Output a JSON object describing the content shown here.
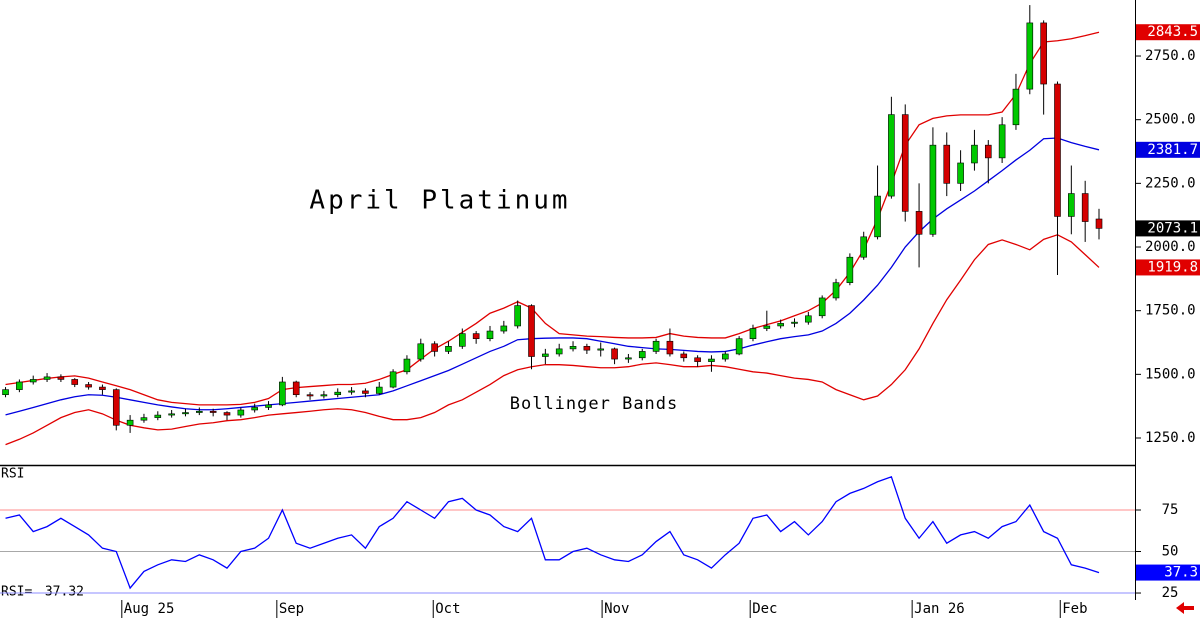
{
  "chart_data": {
    "type": "candlestick",
    "title": "April Platinum",
    "annotation": "Bollinger Bands",
    "x": [
      0,
      1,
      2,
      3,
      4,
      5,
      6,
      7,
      8,
      9,
      10,
      11,
      12,
      13,
      14,
      15,
      16,
      17,
      18,
      19,
      20,
      21,
      22,
      23,
      24,
      25,
      26,
      27,
      28,
      29,
      30,
      31,
      32,
      33,
      34,
      35,
      36,
      37,
      38,
      39,
      40,
      41,
      42,
      43,
      44,
      45,
      46,
      47,
      48,
      49,
      50,
      51,
      52,
      53,
      54,
      55,
      56,
      57,
      58,
      59,
      60,
      61,
      62,
      63,
      64,
      65,
      66,
      67,
      68,
      69,
      70,
      71,
      72,
      73,
      74,
      75,
      76,
      77,
      78,
      79
    ],
    "xlim": [
      -0.4,
      81.6
    ],
    "xticks": [
      {
        "value": 8.4,
        "label": "Aug 25"
      },
      {
        "value": 19.6,
        "label": "Sep"
      },
      {
        "value": 30.9,
        "label": "Oct"
      },
      {
        "value": 43.1,
        "label": "Nov"
      },
      {
        "value": 53.8,
        "label": "Dec"
      },
      {
        "value": 65.5,
        "label": "Jan 26"
      },
      {
        "value": 76.2,
        "label": "Feb"
      }
    ],
    "ylim": [
      1144,
      2970
    ],
    "yticks": [
      {
        "value": 1250,
        "label": "1250.0"
      },
      {
        "value": 1500,
        "label": "1500.0"
      },
      {
        "value": 1750,
        "label": "1750.0"
      },
      {
        "value": 2000,
        "label": "2000.0"
      },
      {
        "value": 2250,
        "label": "2250.0"
      },
      {
        "value": 2500,
        "label": "2500.0"
      },
      {
        "value": 2750,
        "label": "2750.0"
      }
    ],
    "up_color": "#00c800",
    "down_color": "#d40000",
    "close_box_color": "#000000",
    "ohlc": [
      [
        1420,
        1450,
        1410,
        1440
      ],
      [
        1440,
        1480,
        1430,
        1470
      ],
      [
        1470,
        1495,
        1460,
        1480
      ],
      [
        1480,
        1505,
        1470,
        1490
      ],
      [
        1490,
        1500,
        1470,
        1480
      ],
      [
        1480,
        1485,
        1450,
        1460
      ],
      [
        1460,
        1470,
        1440,
        1450
      ],
      [
        1450,
        1460,
        1420,
        1440
      ],
      [
        1440,
        1445,
        1280,
        1300
      ],
      [
        1300,
        1340,
        1270,
        1320
      ],
      [
        1320,
        1345,
        1310,
        1330
      ],
      [
        1330,
        1355,
        1320,
        1340
      ],
      [
        1340,
        1360,
        1330,
        1345
      ],
      [
        1345,
        1365,
        1335,
        1350
      ],
      [
        1350,
        1370,
        1340,
        1355
      ],
      [
        1355,
        1365,
        1335,
        1350
      ],
      [
        1350,
        1355,
        1320,
        1340
      ],
      [
        1340,
        1370,
        1330,
        1360
      ],
      [
        1360,
        1385,
        1350,
        1370
      ],
      [
        1370,
        1395,
        1360,
        1380
      ],
      [
        1380,
        1490,
        1375,
        1470
      ],
      [
        1470,
        1475,
        1410,
        1420
      ],
      [
        1420,
        1430,
        1400,
        1415
      ],
      [
        1415,
        1435,
        1405,
        1420
      ],
      [
        1420,
        1445,
        1410,
        1430
      ],
      [
        1430,
        1450,
        1420,
        1435
      ],
      [
        1435,
        1445,
        1410,
        1425
      ],
      [
        1425,
        1470,
        1420,
        1450
      ],
      [
        1450,
        1520,
        1445,
        1510
      ],
      [
        1510,
        1575,
        1500,
        1560
      ],
      [
        1560,
        1640,
        1550,
        1620
      ],
      [
        1620,
        1630,
        1570,
        1590
      ],
      [
        1590,
        1630,
        1580,
        1610
      ],
      [
        1610,
        1680,
        1600,
        1660
      ],
      [
        1660,
        1670,
        1620,
        1640
      ],
      [
        1640,
        1690,
        1630,
        1670
      ],
      [
        1670,
        1710,
        1660,
        1690
      ],
      [
        1690,
        1790,
        1680,
        1770
      ],
      [
        1770,
        1775,
        1520,
        1570
      ],
      [
        1570,
        1600,
        1540,
        1580
      ],
      [
        1580,
        1620,
        1570,
        1600
      ],
      [
        1600,
        1630,
        1590,
        1610
      ],
      [
        1610,
        1620,
        1580,
        1595
      ],
      [
        1595,
        1625,
        1570,
        1600
      ],
      [
        1600,
        1605,
        1540,
        1560
      ],
      [
        1560,
        1580,
        1545,
        1565
      ],
      [
        1565,
        1600,
        1555,
        1590
      ],
      [
        1590,
        1640,
        1580,
        1630
      ],
      [
        1630,
        1680,
        1570,
        1580
      ],
      [
        1580,
        1590,
        1550,
        1565
      ],
      [
        1565,
        1575,
        1530,
        1550
      ],
      [
        1550,
        1575,
        1510,
        1560
      ],
      [
        1560,
        1590,
        1550,
        1580
      ],
      [
        1580,
        1650,
        1575,
        1640
      ],
      [
        1640,
        1695,
        1630,
        1680
      ],
      [
        1680,
        1750,
        1670,
        1690
      ],
      [
        1690,
        1715,
        1680,
        1700
      ],
      [
        1700,
        1720,
        1685,
        1705
      ],
      [
        1705,
        1745,
        1695,
        1730
      ],
      [
        1730,
        1810,
        1720,
        1800
      ],
      [
        1800,
        1875,
        1790,
        1860
      ],
      [
        1860,
        1975,
        1850,
        1960
      ],
      [
        1960,
        2060,
        1950,
        2040
      ],
      [
        2040,
        2320,
        2030,
        2200
      ],
      [
        2200,
        2590,
        2190,
        2520
      ],
      [
        2520,
        2560,
        2100,
        2140
      ],
      [
        2140,
        2250,
        1920,
        2050
      ],
      [
        2050,
        2470,
        2040,
        2400
      ],
      [
        2400,
        2450,
        2200,
        2250
      ],
      [
        2250,
        2380,
        2220,
        2330
      ],
      [
        2330,
        2460,
        2300,
        2400
      ],
      [
        2400,
        2420,
        2250,
        2350
      ],
      [
        2350,
        2510,
        2330,
        2480
      ],
      [
        2480,
        2680,
        2460,
        2620
      ],
      [
        2620,
        2950,
        2600,
        2880
      ],
      [
        2880,
        2890,
        2520,
        2640
      ],
      [
        2640,
        2650,
        1890,
        2120
      ],
      [
        2120,
        2320,
        2050,
        2210
      ],
      [
        2210,
        2260,
        2020,
        2100
      ],
      [
        2110,
        2150,
        2030,
        2073.1
      ]
    ],
    "bands": [
      {
        "color": "#e00000",
        "values": [
          1460,
          1468,
          1476,
          1484,
          1490,
          1494,
          1485,
          1470,
          1455,
          1440,
          1420,
          1400,
          1390,
          1385,
          1380,
          1380,
          1380,
          1382,
          1390,
          1405,
          1440,
          1448,
          1452,
          1456,
          1460,
          1460,
          1465,
          1480,
          1500,
          1518,
          1560,
          1600,
          1630,
          1665,
          1700,
          1740,
          1760,
          1785,
          1760,
          1700,
          1660,
          1655,
          1650,
          1648,
          1645,
          1643,
          1643,
          1645,
          1660,
          1650,
          1645,
          1643,
          1643,
          1660,
          1680,
          1695,
          1710,
          1730,
          1750,
          1780,
          1830,
          1900,
          1990,
          2110,
          2250,
          2400,
          2480,
          2505,
          2515,
          2519,
          2519,
          2519,
          2530,
          2600,
          2720,
          2805,
          2810,
          2818,
          2830,
          2843.5
        ]
      },
      {
        "color": "#0000e0",
        "values": [
          1341,
          1355,
          1370,
          1385,
          1400,
          1412,
          1420,
          1418,
          1410,
          1400,
          1390,
          1380,
          1372,
          1365,
          1361,
          1361,
          1365,
          1370,
          1375,
          1380,
          1385,
          1390,
          1395,
          1400,
          1405,
          1410,
          1415,
          1420,
          1435,
          1455,
          1475,
          1495,
          1515,
          1540,
          1565,
          1590,
          1610,
          1636,
          1640,
          1642,
          1643,
          1643,
          1640,
          1630,
          1620,
          1610,
          1605,
          1600,
          1598,
          1594,
          1590,
          1588,
          1590,
          1600,
          1615,
          1628,
          1640,
          1648,
          1655,
          1670,
          1700,
          1740,
          1792,
          1850,
          1920,
          2000,
          2060,
          2110,
          2150,
          2185,
          2220,
          2260,
          2300,
          2342,
          2380,
          2425,
          2428,
          2410,
          2395,
          2381.7
        ]
      },
      {
        "color": "#e00000",
        "values": [
          1224,
          1245,
          1270,
          1300,
          1330,
          1350,
          1361,
          1345,
          1320,
          1300,
          1290,
          1282,
          1285,
          1295,
          1305,
          1310,
          1318,
          1322,
          1330,
          1340,
          1345,
          1350,
          1355,
          1361,
          1365,
          1361,
          1350,
          1335,
          1322,
          1322,
          1330,
          1350,
          1380,
          1400,
          1430,
          1460,
          1495,
          1518,
          1530,
          1538,
          1538,
          1535,
          1530,
          1526,
          1526,
          1530,
          1540,
          1545,
          1538,
          1530,
          1530,
          1535,
          1530,
          1520,
          1510,
          1505,
          1495,
          1485,
          1480,
          1470,
          1440,
          1420,
          1400,
          1415,
          1460,
          1518,
          1600,
          1700,
          1793,
          1870,
          1950,
          2010,
          2028,
          2010,
          1989,
          2030,
          2048,
          2020,
          1970,
          1919.8
        ]
      }
    ],
    "rsi": {
      "label": "RSI",
      "readout_label": "RSI=",
      "color": "#0000ff",
      "ylim": [
        20.8,
        101.5
      ],
      "yticks": [
        25,
        50,
        75
      ],
      "grid_colors": [
        "#8c8cff",
        "#a8a8a8",
        "#ff8c8c"
      ],
      "last_value_label": "37.3",
      "values": [
        70,
        72,
        62,
        65,
        70,
        65,
        60,
        52,
        50,
        28,
        38,
        42,
        45,
        44,
        48,
        45,
        40,
        50,
        52,
        58,
        75,
        55,
        52,
        55,
        58,
        60,
        52,
        65,
        70,
        80,
        75,
        70,
        80,
        82,
        75,
        72,
        65,
        62,
        70,
        45,
        45,
        50,
        52,
        48,
        45,
        44,
        48,
        56,
        62,
        48,
        45,
        40,
        48,
        55,
        70,
        72,
        62,
        68,
        60,
        68,
        80,
        85,
        88,
        92,
        95,
        70,
        58,
        68,
        55,
        60,
        62,
        58,
        65,
        68,
        78,
        62,
        58,
        42,
        40,
        37.32
      ]
    }
  }
}
